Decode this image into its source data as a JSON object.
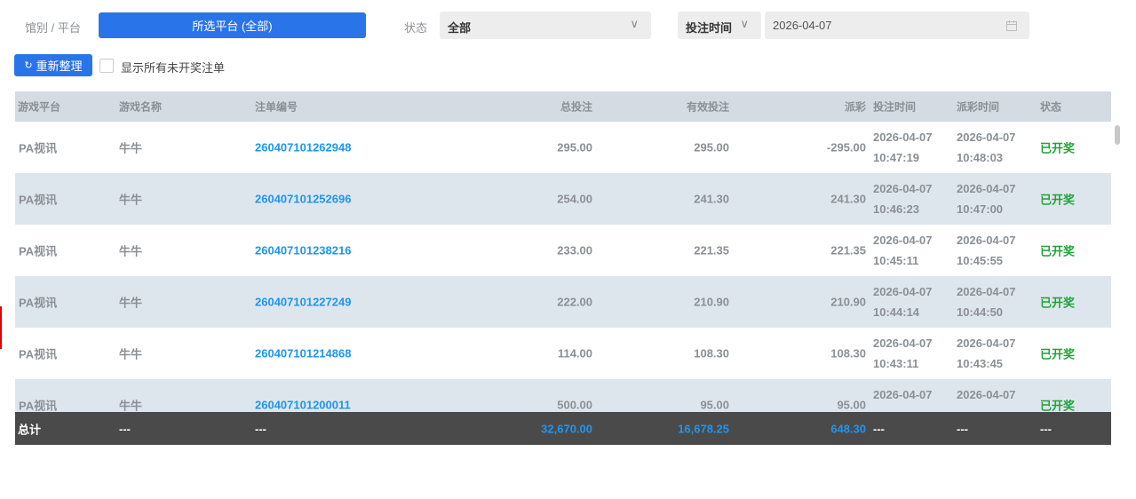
{
  "filters": {
    "venue_label": "馆别 / 平台",
    "platform_button": "所选平台 (全部)",
    "status_label": "状态",
    "status_value": "全部",
    "time_type": "投注时间",
    "date_value": "2026-04-07"
  },
  "toolbar": {
    "refresh_label": "重新整理",
    "refresh_icon": "refresh-icon",
    "show_unsettled_label": "显示所有未开奖注单",
    "show_unsettled_checked": false
  },
  "colors": {
    "accent": "#2a74ea",
    "link": "#1e96f0",
    "settled": "#22a33a",
    "total_bg": "#4a4a4a",
    "header_bg": "#d4dbe2",
    "alt_row": "#dee6ed"
  },
  "table": {
    "headers": [
      "游戏平台",
      "游戏名称",
      "注单编号",
      "总投注",
      "有效投注",
      "派彩",
      "投注时间",
      "派彩时间",
      "状态"
    ],
    "rows": [
      {
        "platform": "PA视讯",
        "game": "牛牛",
        "bet_id": "260407101262948",
        "total": "295.00",
        "valid": "295.00",
        "payout": "-295.00",
        "bet_date": "2026-04-07",
        "bet_time": "10:47:19",
        "pay_date": "2026-04-07",
        "pay_time": "10:48:03",
        "status": "已开奖"
      },
      {
        "platform": "PA视讯",
        "game": "牛牛",
        "bet_id": "260407101252696",
        "total": "254.00",
        "valid": "241.30",
        "payout": "241.30",
        "bet_date": "2026-04-07",
        "bet_time": "10:46:23",
        "pay_date": "2026-04-07",
        "pay_time": "10:47:00",
        "status": "已开奖"
      },
      {
        "platform": "PA视讯",
        "game": "牛牛",
        "bet_id": "260407101238216",
        "total": "233.00",
        "valid": "221.35",
        "payout": "221.35",
        "bet_date": "2026-04-07",
        "bet_time": "10:45:11",
        "pay_date": "2026-04-07",
        "pay_time": "10:45:55",
        "status": "已开奖"
      },
      {
        "platform": "PA视讯",
        "game": "牛牛",
        "bet_id": "260407101227249",
        "total": "222.00",
        "valid": "210.90",
        "payout": "210.90",
        "bet_date": "2026-04-07",
        "bet_time": "10:44:14",
        "pay_date": "2026-04-07",
        "pay_time": "10:44:50",
        "status": "已开奖"
      },
      {
        "platform": "PA视讯",
        "game": "牛牛",
        "bet_id": "260407101214868",
        "total": "114.00",
        "valid": "108.30",
        "payout": "108.30",
        "bet_date": "2026-04-07",
        "bet_time": "10:43:11",
        "pay_date": "2026-04-07",
        "pay_time": "10:43:45",
        "status": "已开奖"
      },
      {
        "platform": "PA视讯",
        "game": "牛牛",
        "bet_id": "260407101200011",
        "total": "500.00",
        "valid": "95.00",
        "payout": "95.00",
        "bet_date": "2026-04-07",
        "pay_date": "2026-04-07",
        "status": "已开奖"
      }
    ],
    "totals": {
      "label": "总计",
      "game": "---",
      "bet_id": "---",
      "total": "32,670.00",
      "valid": "16,678.25",
      "payout": "648.30",
      "bet_time": "---",
      "pay_time": "---",
      "status": "---"
    }
  }
}
